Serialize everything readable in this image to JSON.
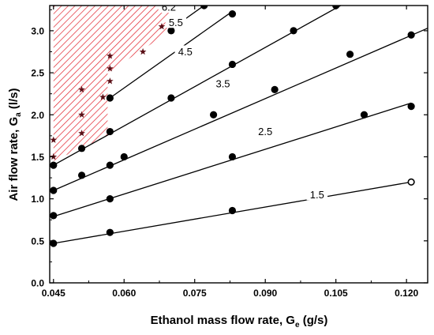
{
  "chart_data": {
    "type": "scatter",
    "title": "",
    "xlabel": "Ethanol mass flow rate, G",
    "xlabel_subscript": "e",
    "xlabel_unit": " (g/s)",
    "ylabel": "Air flow rate, G",
    "ylabel_subscript": "a",
    "ylabel_unit": " (l/s)",
    "xlim": [
      0.0442,
      0.1245
    ],
    "ylim": [
      0.0,
      3.3
    ],
    "x_ticks": [
      0.045,
      0.06,
      0.075,
      0.09,
      0.105,
      0.12
    ],
    "x_tick_labels": [
      "0.045",
      "0.060",
      "0.075",
      "0.090",
      "0.105",
      "0.120"
    ],
    "y_ticks": [
      0.0,
      0.5,
      1.0,
      1.5,
      2.0,
      2.5,
      3.0
    ],
    "y_tick_labels": [
      "0.0",
      "0.5",
      "1.0",
      "1.5",
      "2.0",
      "2.5",
      "3.0"
    ],
    "grid": false,
    "series": [
      {
        "label": "1.5",
        "fit": [
          [
            0.045,
            0.47
          ],
          [
            0.121,
            1.2
          ]
        ],
        "points": [
          [
            0.045,
            0.47
          ],
          [
            0.057,
            0.6
          ],
          [
            0.083,
            0.86
          ]
        ],
        "open_points": [
          [
            0.121,
            1.2
          ]
        ],
        "label_at": [
          0.101,
          1.05
        ]
      },
      {
        "label": "2.5",
        "fit": [
          [
            0.045,
            0.79
          ],
          [
            0.121,
            2.14
          ]
        ],
        "points": [
          [
            0.045,
            0.8
          ],
          [
            0.057,
            1.0
          ],
          [
            0.083,
            1.5
          ],
          [
            0.121,
            2.1
          ]
        ],
        "label_at": [
          0.09,
          1.8
        ]
      },
      {
        "label": "3.5",
        "fit": [
          [
            0.045,
            1.1
          ],
          [
            0.1245,
            3.03
          ]
        ],
        "points": [
          [
            0.045,
            1.1
          ],
          [
            0.051,
            1.28
          ],
          [
            0.057,
            1.4
          ],
          [
            0.06,
            1.5
          ],
          [
            0.079,
            2.0
          ],
          [
            0.092,
            2.3
          ],
          [
            0.111,
            2.0
          ],
          [
            0.121,
            2.95
          ]
        ],
        "label_at": [
          0.081,
          2.37
        ]
      },
      {
        "label": "4.5",
        "fit": [
          [
            0.045,
            1.4
          ],
          [
            0.106,
            3.3
          ]
        ],
        "points": [
          [
            0.045,
            1.4
          ],
          [
            0.051,
            1.6
          ],
          [
            0.057,
            1.8
          ],
          [
            0.07,
            2.2
          ],
          [
            0.083,
            2.6
          ],
          [
            0.096,
            3.0
          ],
          [
            0.108,
            2.72
          ],
          [
            0.105,
            3.3
          ]
        ],
        "label_at": [
          0.073,
          2.75
        ]
      },
      {
        "label": "5.5",
        "fit": [
          [
            0.057,
            2.2
          ],
          [
            0.083,
            3.23
          ]
        ],
        "points": [
          [
            0.057,
            2.2
          ],
          [
            0.083,
            3.2
          ]
        ],
        "label_at": [
          0.071,
          3.1
        ]
      },
      {
        "label": "6.2",
        "fit": [
          [
            0.07,
            3.02
          ],
          [
            0.077,
            3.3
          ]
        ],
        "points": [
          [
            0.07,
            3.0
          ],
          [
            0.077,
            3.3
          ]
        ],
        "label_at": [
          0.0695,
          3.28
        ]
      }
    ],
    "stars": [
      [
        0.045,
        1.7
      ],
      [
        0.045,
        1.5
      ],
      [
        0.051,
        2.3
      ],
      [
        0.051,
        2.0
      ],
      [
        0.051,
        1.78
      ],
      [
        0.057,
        2.7
      ],
      [
        0.057,
        2.55
      ],
      [
        0.057,
        2.4
      ],
      [
        0.0555,
        2.21
      ],
      [
        0.064,
        2.75
      ],
      [
        0.068,
        3.05
      ],
      [
        0.0685,
        3.3
      ]
    ],
    "hatched_region": [
      [
        0.045,
        3.3
      ],
      [
        0.07,
        3.3
      ],
      [
        0.07,
        3.0
      ],
      [
        0.0565,
        2.5
      ],
      [
        0.0565,
        1.75
      ],
      [
        0.045,
        1.45
      ]
    ],
    "colors": {
      "hatch": "#e2232d",
      "star": "#5a0f16",
      "line": "#000000",
      "marker": "#000000"
    }
  }
}
